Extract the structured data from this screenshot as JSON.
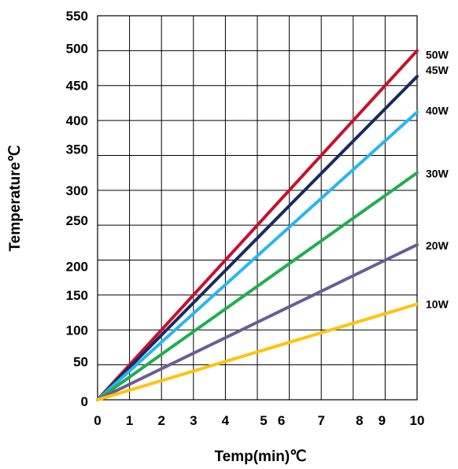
{
  "chart_data": {
    "type": "line",
    "title": "",
    "xlabel": "Temp(min)℃",
    "ylabel": "Temperature℃",
    "xlim": [
      0,
      10
    ],
    "ylim": [
      0,
      550
    ],
    "x_ticks": [
      0,
      1,
      2,
      3,
      4,
      5,
      6,
      7,
      8,
      9,
      10
    ],
    "y_ticks": [
      0,
      50,
      100,
      150,
      200,
      250,
      300,
      350,
      400,
      450,
      500,
      550
    ],
    "grid": true,
    "legend": "series labels at right end of lines",
    "series": [
      {
        "name": "50W",
        "color": "#c8102e",
        "x": [
          0,
          10
        ],
        "y": [
          0,
          500
        ]
      },
      {
        "name": "45W",
        "color": "#1a2a5e",
        "x": [
          0,
          10
        ],
        "y": [
          0,
          463
        ]
      },
      {
        "name": "40W",
        "color": "#29b6f0",
        "x": [
          0,
          10
        ],
        "y": [
          0,
          412
        ]
      },
      {
        "name": "30W",
        "color": "#1fae4f",
        "x": [
          0,
          10
        ],
        "y": [
          0,
          325
        ]
      },
      {
        "name": "20W",
        "color": "#6b5b95",
        "x": [
          0,
          10
        ],
        "y": [
          0,
          222
        ]
      },
      {
        "name": "10W",
        "color": "#ffc20e",
        "x": [
          0,
          10
        ],
        "y": [
          0,
          137
        ]
      }
    ]
  }
}
